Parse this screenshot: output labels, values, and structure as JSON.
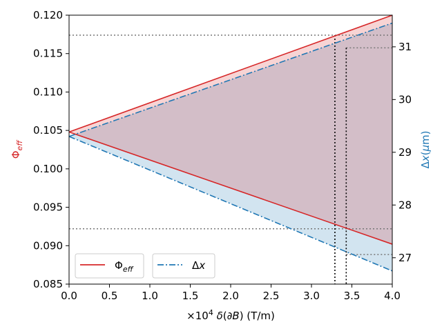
{
  "chart_data": {
    "type": "area",
    "x": [
      0,
      4.0
    ],
    "xlim": [
      0,
      4.0
    ],
    "xticks": [
      "0.0",
      "0.5",
      "1.0",
      "1.5",
      "2.0",
      "2.5",
      "3.0",
      "3.5",
      "4.0"
    ],
    "xlabel": "×10⁴  δ(∂B) (T/m)",
    "left_axis": {
      "label": "Φ_eff",
      "color": "#d62728",
      "ylim": [
        0.085,
        0.12
      ],
      "ticks": [
        "0.085",
        "0.090",
        "0.095",
        "0.100",
        "0.105",
        "0.110",
        "0.115",
        "0.120"
      ]
    },
    "right_axis": {
      "label": "Δx(μm)",
      "color": "#1f77b4",
      "ylim": [
        26.5,
        31.6
      ],
      "ticks": [
        "27",
        "28",
        "29",
        "30",
        "31"
      ]
    },
    "series": [
      {
        "name": "Φeff",
        "axis": "left",
        "style": "solid",
        "color": "#d62728",
        "upper": [
          0.1048,
          0.12
        ],
        "lower": [
          0.1048,
          0.0902
        ],
        "fill": "#f4c6ca"
      },
      {
        "name": "Δx",
        "axis": "right",
        "style": "dashdot",
        "color": "#1f77b4",
        "upper": [
          29.3,
          31.45
        ],
        "lower": [
          29.3,
          26.75
        ],
        "fill": "#c7dcec"
      }
    ],
    "reference_lines": {
      "horizontal_left": [
        0.1174,
        0.0922
      ],
      "horizontal_right": [
        30.98,
        27.06
      ],
      "vertical_x": [
        3.29,
        3.43
      ]
    },
    "legend": {
      "placement": "lower-left",
      "entries": [
        "Φeff",
        "Δx"
      ]
    }
  }
}
